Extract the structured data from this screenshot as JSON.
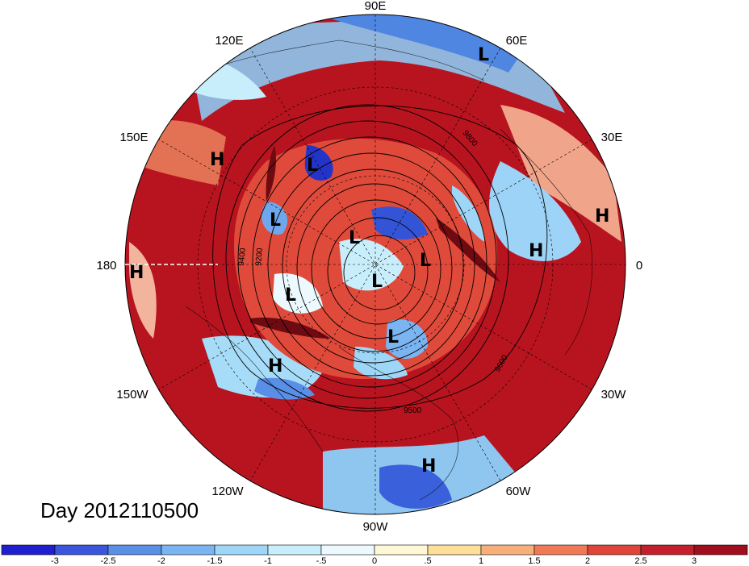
{
  "map": {
    "projection": "north-polar-stereographic",
    "longitude_labels": [
      "90E",
      "60E",
      "30E",
      "0",
      "30W",
      "60W",
      "90W",
      "120W",
      "150W",
      "180",
      "150E",
      "120E"
    ],
    "contour_labels": [
      "9200",
      "9400",
      "9500",
      "9600",
      "9800"
    ],
    "pressure_centers": {
      "highs": [
        "H",
        "H",
        "H",
        "H",
        "H",
        "H"
      ],
      "lows": [
        "L",
        "L",
        "L",
        "L",
        "L",
        "L",
        "L",
        "L"
      ]
    }
  },
  "title": "Day 2012110500",
  "colorbar": {
    "ticks": [
      "-3",
      "-2.5",
      "-2",
      "-1.5",
      "-1",
      "-.5",
      "0",
      ".5",
      "1",
      "1.5",
      "2",
      "2.5",
      "3"
    ],
    "colors": [
      "#1f1fcf",
      "#3a56dd",
      "#5a8fe8",
      "#7ab5f2",
      "#9ed6f8",
      "#c8eefc",
      "#ecfaff",
      "#fff8d6",
      "#fddf9a",
      "#f7b07a",
      "#f07a56",
      "#e04438",
      "#c4202c",
      "#a10d1d"
    ]
  }
}
